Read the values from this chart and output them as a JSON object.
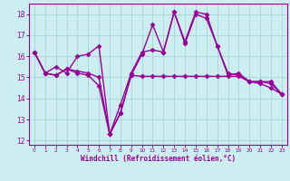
{
  "line1_x": [
    0,
    1,
    2,
    3,
    4,
    5,
    6,
    7,
    8,
    9,
    10,
    11,
    12,
    13,
    14,
    15,
    16,
    17,
    18,
    19,
    20,
    21,
    22,
    23
  ],
  "line1_y": [
    16.2,
    15.2,
    15.1,
    15.4,
    15.2,
    15.1,
    14.6,
    12.3,
    13.3,
    15.1,
    15.05,
    15.05,
    15.05,
    15.05,
    15.05,
    15.05,
    15.05,
    15.05,
    15.05,
    15.05,
    14.8,
    14.8,
    14.7,
    14.2
  ],
  "line2_x": [
    0,
    1,
    2,
    3,
    4,
    5,
    6,
    7,
    8,
    9,
    10,
    11,
    12,
    13,
    14,
    15,
    16,
    17,
    18,
    19,
    20,
    21,
    22,
    23
  ],
  "line2_y": [
    16.2,
    15.2,
    15.5,
    15.2,
    16.0,
    16.1,
    16.5,
    12.3,
    13.3,
    15.1,
    16.1,
    17.5,
    16.2,
    18.1,
    16.7,
    18.1,
    18.0,
    16.5,
    15.1,
    15.2,
    14.8,
    14.8,
    14.8,
    14.2
  ],
  "line3_x": [
    0,
    1,
    2,
    3,
    4,
    5,
    6,
    7,
    8,
    9,
    10,
    11,
    12,
    13,
    14,
    15,
    16,
    17,
    18,
    19,
    20,
    21,
    22,
    23
  ],
  "line3_y": [
    16.2,
    15.2,
    15.1,
    15.4,
    15.3,
    15.2,
    15.0,
    12.3,
    13.7,
    15.2,
    16.2,
    16.3,
    16.2,
    18.1,
    16.6,
    18.0,
    17.8,
    16.5,
    15.2,
    15.1,
    14.8,
    14.7,
    14.5,
    14.2
  ],
  "color": "#990099",
  "bg_color": "#cceef0",
  "grid_color": "#aad8da",
  "xlabel": "Windchill (Refroidissement éolien,°C)",
  "ylim": [
    11.8,
    18.5
  ],
  "xlim": [
    -0.5,
    23.5
  ],
  "yticks": [
    12,
    13,
    14,
    15,
    16,
    17,
    18
  ],
  "xticks": [
    0,
    1,
    2,
    3,
    4,
    5,
    6,
    7,
    8,
    9,
    10,
    11,
    12,
    13,
    14,
    15,
    16,
    17,
    18,
    19,
    20,
    21,
    22,
    23
  ],
  "marker": "D",
  "markersize": 2.5,
  "linewidth": 1.0
}
